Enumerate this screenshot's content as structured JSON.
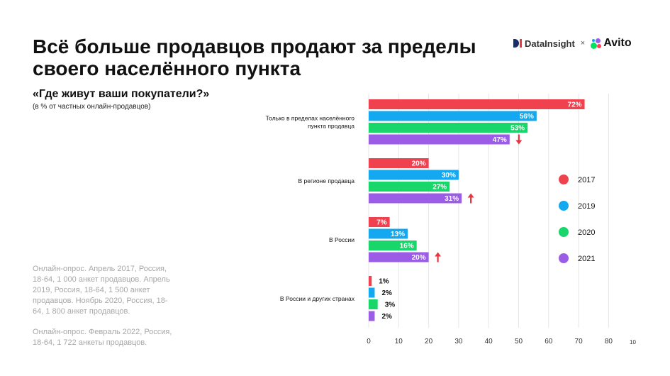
{
  "title": "Всё больше продавцов продают за пределы своего населённого пункта",
  "subtitle": "«Где живут ваши покупатели?»",
  "subnote": "(в % от частных онлайн-продавцов)",
  "notes": [
    "Онлайн-опрос. Апрель 2017, Россия, 18-64, 1 000 анкет продавцов. Апрель 2019, Россия, 18-64, 1 500 анкет продавцов. Ноябрь 2020, Россия, 18-64, 1 800 анкет продавцов.",
    "Онлайн-опрос. Февраль 2022, Россия, 18-64, 1 722 анкеты продавцов."
  ],
  "logos": {
    "datainsight": "DataInsight",
    "separator": "×",
    "avito": "Avito"
  },
  "page_number": "10",
  "colors": {
    "2017": "#f0414f",
    "2019": "#14a8f0",
    "2020": "#19d66b",
    "2021": "#9b5de5",
    "arrow": "#e8343f"
  },
  "chart_data": {
    "type": "bar",
    "orientation": "horizontal",
    "categories": [
      [
        "Только в пределах населённого",
        "пункта продавца"
      ],
      [
        "В регионе продавца"
      ],
      [
        "В России"
      ],
      [
        "В России и других странах"
      ]
    ],
    "series": [
      {
        "name": "2017",
        "values": [
          72,
          20,
          7,
          1
        ],
        "labels": [
          "72%",
          "20%",
          "7%",
          "1%"
        ]
      },
      {
        "name": "2019",
        "values": [
          56,
          30,
          13,
          2
        ],
        "labels": [
          "56%",
          "30%",
          "13%",
          "2%"
        ]
      },
      {
        "name": "2020",
        "values": [
          53,
          27,
          16,
          3
        ],
        "labels": [
          "53%",
          "27%",
          "16%",
          "3%"
        ]
      },
      {
        "name": "2021",
        "values": [
          47,
          31,
          20,
          2
        ],
        "labels": [
          "47%",
          "31%",
          "20%",
          "2%"
        ]
      }
    ],
    "trend_arrows": [
      "down",
      "up",
      "up",
      "none"
    ],
    "xticks": [
      0,
      10,
      20,
      30,
      40,
      50,
      60,
      70,
      80
    ],
    "xlim": [
      0,
      85
    ],
    "grid": "vertical",
    "legend_position": "right"
  }
}
